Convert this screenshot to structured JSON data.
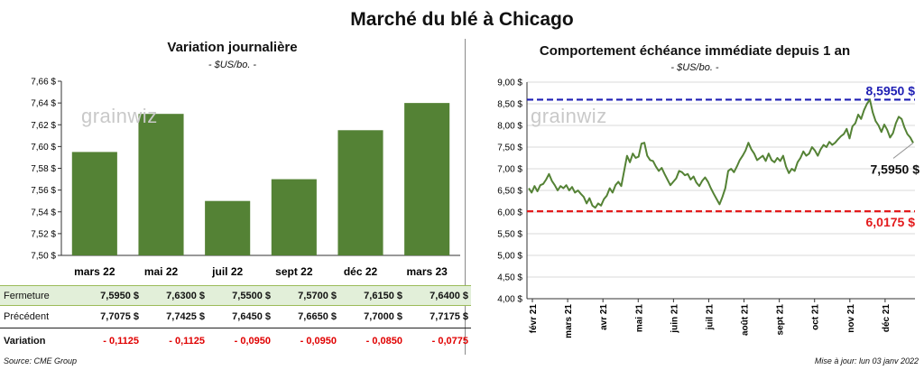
{
  "title": "Marché du blé à Chicago",
  "left_panel": {
    "title": "Variation journalière",
    "subtitle": "- $US/bo. -",
    "logo": "grainwiz"
  },
  "right_panel": {
    "title": "Comportement  échéance immédiate depuis 1 an",
    "subtitle": "- $US/bo. -",
    "logo": "grainwiz"
  },
  "table": {
    "row_labels": [
      "Fermeture",
      "Précédent",
      "Variation"
    ],
    "fermeture": [
      "7,5950  $",
      "7,6300  $",
      "7,5500  $",
      "7,5700  $",
      "7,6150  $",
      "7,6400  $"
    ],
    "precedent": [
      "7,7075  $",
      "7,7425  $",
      "7,6450  $",
      "7,6650  $",
      "7,7000  $",
      "7,7175  $"
    ],
    "variation": [
      "- 0,1125",
      "- 0,1125",
      "- 0,0950",
      "- 0,0950",
      "- 0,0850",
      "- 0,0775"
    ]
  },
  "footer": {
    "source": "Source: CME Group",
    "updated": "Mise à jour: lun 03 janv 2022"
  },
  "colors": {
    "bar": "#548235",
    "line": "#548235",
    "high_line": "#1f1fb4",
    "low_line": "#e31a1c",
    "ferm_bg": "#e2efd9",
    "negative": "#e00000"
  },
  "chart_data": [
    {
      "type": "bar",
      "categories": [
        "mars 22",
        "mai 22",
        "juil 22",
        "sept 22",
        "déc 22",
        "mars 23"
      ],
      "values": [
        7.595,
        7.63,
        7.55,
        7.57,
        7.615,
        7.64
      ],
      "ylim": [
        7.5,
        7.66
      ],
      "yticks": [
        "7,50 $",
        "7,52 $",
        "7,54 $",
        "7,56 $",
        "7,58 $",
        "7,60 $",
        "7,62 $",
        "7,64 $",
        "7,66 $"
      ],
      "grid": false
    },
    {
      "type": "line",
      "x_labels": [
        "févr 21",
        "mars 21",
        "avr 21",
        "mai 21",
        "juin 21",
        "juil 21",
        "août 21",
        "sept 21",
        "oct 21",
        "nov 21",
        "déc 21"
      ],
      "ylim": [
        4.0,
        9.0
      ],
      "yticks": [
        "4,00 $",
        "4,50 $",
        "5,00 $",
        "5,50 $",
        "6,00 $",
        "6,50 $",
        "7,00 $",
        "7,50 $",
        "8,00 $",
        "8,50 $",
        "9,00 $"
      ],
      "series": [
        {
          "values": [
            6.55,
            6.45,
            6.6,
            6.48,
            6.62,
            6.65,
            6.75,
            6.88,
            6.72,
            6.62,
            6.5,
            6.6,
            6.55,
            6.62,
            6.5,
            6.58,
            6.45,
            6.5,
            6.42,
            6.35,
            6.2,
            6.32,
            6.15,
            6.1,
            6.2,
            6.15,
            6.3,
            6.38,
            6.55,
            6.45,
            6.62,
            6.7,
            6.6,
            6.95,
            7.3,
            7.15,
            7.35,
            7.25,
            7.28,
            7.58,
            7.6,
            7.3,
            7.2,
            7.18,
            7.05,
            6.95,
            7.02,
            6.88,
            6.75,
            6.62,
            6.7,
            6.78,
            6.95,
            6.92,
            6.85,
            6.88,
            6.75,
            6.82,
            6.68,
            6.6,
            6.72,
            6.8,
            6.7,
            6.55,
            6.42,
            6.3,
            6.18,
            6.35,
            6.55,
            6.95,
            7.0,
            6.92,
            7.05,
            7.2,
            7.3,
            7.42,
            7.6,
            7.45,
            7.35,
            7.2,
            7.25,
            7.3,
            7.18,
            7.35,
            7.2,
            7.15,
            7.25,
            7.18,
            7.3,
            7.05,
            6.9,
            7.0,
            6.95,
            7.15,
            7.25,
            7.4,
            7.3,
            7.35,
            7.5,
            7.42,
            7.3,
            7.45,
            7.55,
            7.5,
            7.62,
            7.55,
            7.6,
            7.68,
            7.75,
            7.8,
            7.92,
            7.7,
            7.98,
            8.05,
            8.25,
            8.15,
            8.35,
            8.5,
            8.595,
            8.3,
            8.1,
            8.0,
            7.85,
            8.02,
            7.9,
            7.72,
            7.82,
            8.05,
            8.2,
            8.15,
            7.95,
            7.8,
            7.72,
            7.595
          ]
        }
      ],
      "reference_lines": [
        {
          "value": 8.595,
          "label": "8,5950  $"
        },
        {
          "value": 6.0175,
          "label": "6,0175  $"
        }
      ],
      "last_label": "7,5950 $",
      "grid": true
    }
  ]
}
